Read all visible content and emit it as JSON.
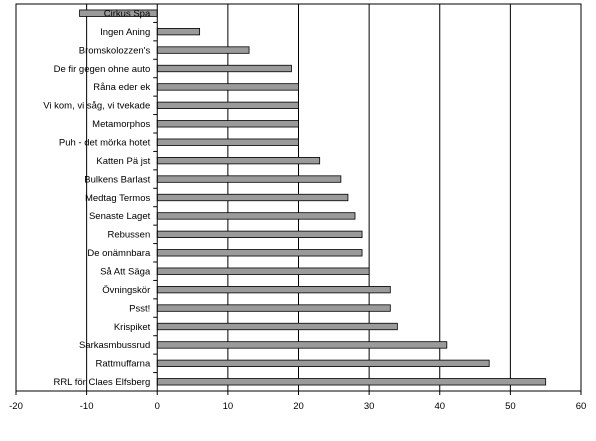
{
  "chart_data": {
    "type": "bar",
    "orientation": "horizontal",
    "categories": [
      "Cirkus Spa",
      "Ingen Aning",
      "Bromskolozzen's",
      "De fir gegen ohne auto",
      "Råna eder ek",
      "Vi kom, vi såg, vi tvekade",
      "Metamorphos",
      "Puh - det mörka hotet",
      "Katten Pä jst",
      "Bulkens Barlast",
      "Medtag Termos",
      "Senaste Laget",
      "Rebussen",
      "De onämnbara",
      "Så Att Säga",
      "Övningskör",
      "Psst!",
      "Krispiket",
      "Sarkasmbussrud",
      "Rattmuffarna",
      "RRL för Claes Elfsberg"
    ],
    "values": [
      -11,
      6,
      13,
      19,
      20,
      20,
      20,
      20,
      23,
      26,
      27,
      28,
      29,
      29,
      30,
      33,
      33,
      34,
      41,
      47,
      55
    ],
    "xlim": [
      -20,
      60
    ],
    "xticks": [
      -20,
      -10,
      0,
      10,
      20,
      30,
      40,
      50,
      60
    ],
    "grid": "vertical",
    "legend": "none",
    "bar_color": "#9a9a9a",
    "title": "",
    "xlabel": "",
    "ylabel": ""
  }
}
